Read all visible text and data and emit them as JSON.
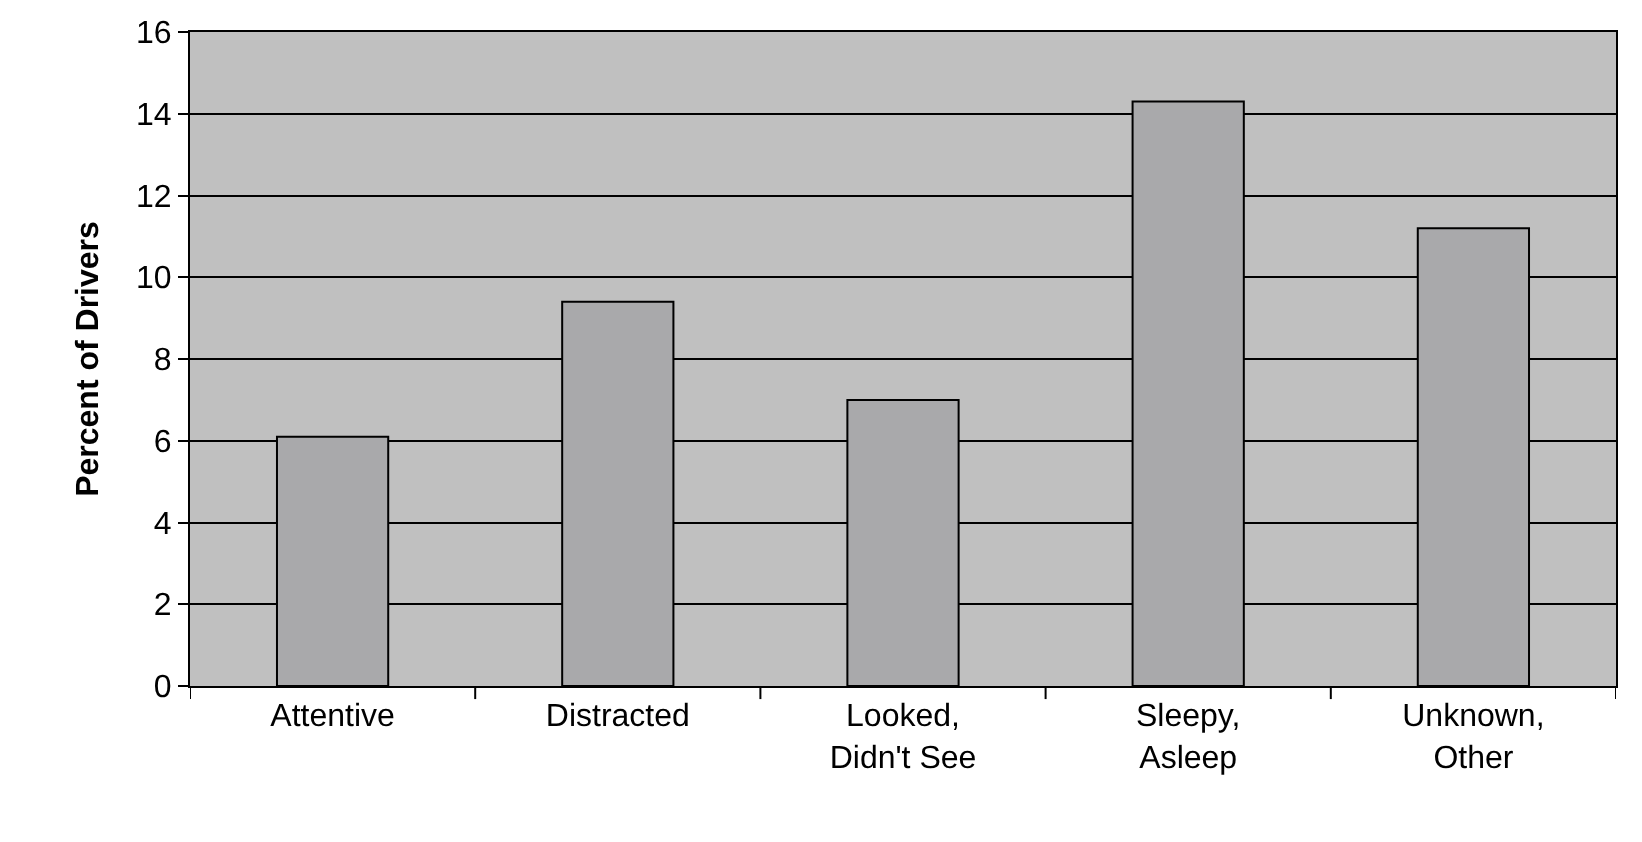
{
  "chart_data": {
    "type": "bar",
    "ylabel": "Percent of Drivers",
    "categories": [
      "Attentive",
      "Distracted",
      "Looked, Didn't See",
      "Sleepy, Asleep",
      "Unknown, Other"
    ],
    "values": [
      6.1,
      9.4,
      7.0,
      14.3,
      11.2
    ],
    "color": "#a9a9ab",
    "ylim": [
      0,
      16
    ],
    "yticks": [
      0,
      2,
      4,
      6,
      8,
      10,
      12,
      14,
      16
    ],
    "grid": "y",
    "legend": false
  }
}
